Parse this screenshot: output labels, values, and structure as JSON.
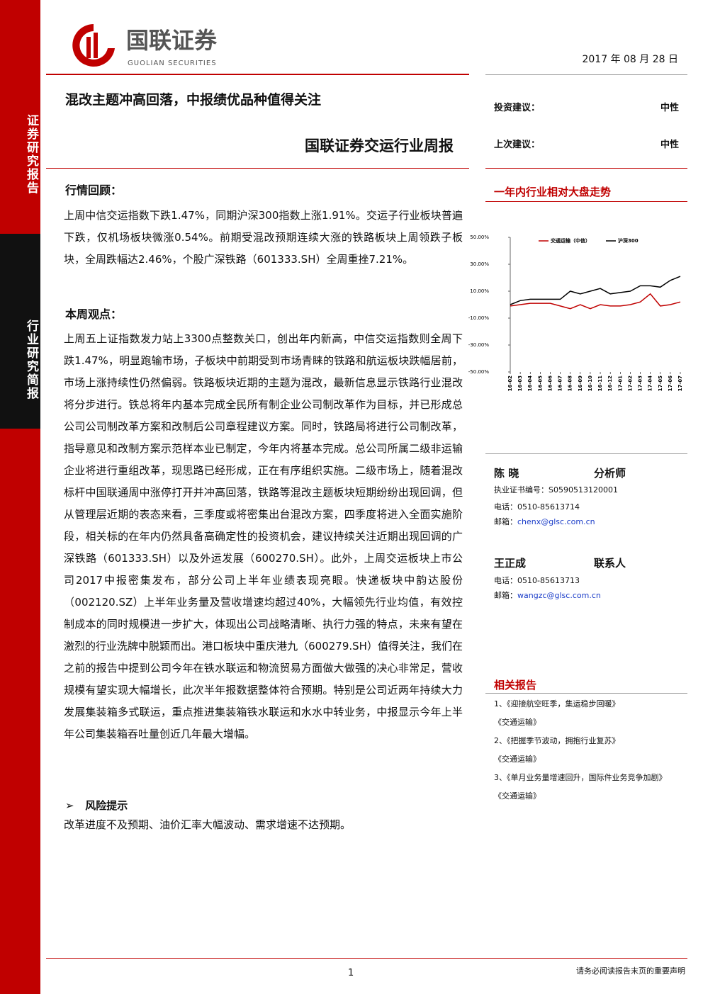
{
  "header": {
    "logo_cn": "国联证券",
    "logo_en": "GUOLIAN SECURITIES",
    "date": "2017 年 08 月 28 日"
  },
  "sidebar": {
    "top": "证券研究报告",
    "bottom": "行业研究简报"
  },
  "title": "混改主题冲高回落，中报绩优品种值得关注",
  "subtitle": "国联证券交运行业周报",
  "ratings": [
    {
      "label": "投资建议：",
      "value": "中性"
    },
    {
      "label": "上次建议：",
      "value": "中性"
    }
  ],
  "review": {
    "heading": "行情回顾：",
    "text": "上周中信交运指数下跌1.47%，同期沪深300指数上涨1.91%。交运子行业板块普遍下跌，仅机场板块微涨0.54%。前期受混改预期连续大涨的铁路板块上周领跌子板块，全周跌幅达2.46%，个股广深铁路（601333.SH）全周重挫7.21%。"
  },
  "view": {
    "heading": "本周观点：",
    "text": "上周五上证指数发力站上3300点整数关口，创出年内新高，中信交运指数则全周下跌1.47%，明显跑输市场，子板块中前期受到市场青睐的铁路和航运板块跌幅居前，市场上涨持续性仍然偏弱。铁路板块近期的主题为混改，最新信息显示铁路行业混改将分步进行。铁总将年内基本完成全民所有制企业公司制改革作为目标，并已形成总公司公司制改革方案和改制后公司章程建议方案。同时，铁路局将进行公司制改革，指导意见和改制方案示范样本业已制定，今年内将基本完成。总公司所属二级非运输企业将进行重组改革，现思路已经形成，正在有序组织实施。二级市场上，随着混改标杆中国联通周中涨停打开并冲高回落，铁路等混改主题板块短期纷纷出现回调，但从管理层近期的表态来看，三季度或将密集出台混改方案，四季度将进入全面实施阶段，相关标的在年内仍然具备高确定性的投资机会，建议持续关注近期出现回调的广深铁路（601333.SH）以及外运发展（600270.SH）。此外，上周交运板块上市公司2017中报密集发布，部分公司上半年业绩表现亮眼。快递板块中韵达股份（002120.SZ）上半年业务量及营收增速均超过40%，大幅领先行业均值，有效控制成本的同时规模进一步扩大，体现出公司战略清晰、执行力强的特点，未来有望在激烈的行业洗牌中脱颖而出。港口板块中重庆港九（600279.SH）值得关注，我们在之前的报告中提到公司今年在铁水联运和物流贸易方面做大做强的决心非常足，营收规模有望实现大幅增长，此次半年报数据整体符合预期。特别是公司近两年持续大力发展集装箱多式联运，重点推进集装箱铁水联运和水水中转业务，中报显示今年上半年公司集装箱吞吐量创近几年最大增幅。"
  },
  "risk": {
    "bullet": "➢",
    "heading": "风险提示",
    "text": "改革进度不及预期、油价汇率大幅波动、需求增速不达预期。"
  },
  "chart_data": {
    "type": "line",
    "title": "一年内行业相对大盘走势",
    "categories": [
      "16-02",
      "16-03",
      "16-04",
      "16-05",
      "16-06",
      "16-07",
      "16-08",
      "16-09",
      "16-10",
      "16-11",
      "16-12",
      "17-01",
      "17-02",
      "17-03",
      "17-04",
      "17-05",
      "17-06",
      "17-07"
    ],
    "series": [
      {
        "name": "交通运输（中信）",
        "color": "#c00000",
        "values": [
          -1,
          0,
          1,
          1,
          1,
          -1,
          -3,
          0,
          -3,
          0,
          -1,
          -1,
          0,
          2,
          8,
          -1,
          0,
          2
        ]
      },
      {
        "name": "沪深300",
        "color": "#000000",
        "values": [
          0,
          3,
          4,
          4,
          4,
          4,
          10,
          8,
          10,
          12,
          8,
          9,
          10,
          14,
          14,
          13,
          18,
          21
        ]
      }
    ],
    "ylim": [
      -50,
      50
    ],
    "yticks": [
      {
        "value": 50,
        "label": "50.00%"
      },
      {
        "value": 30,
        "label": "30.00%"
      },
      {
        "value": 10,
        "label": "10.00%"
      },
      {
        "value": -10,
        "label": "-10.00%"
      },
      {
        "value": -30,
        "label": "-30.00%"
      },
      {
        "value": -50,
        "label": "-50.00%"
      }
    ]
  },
  "analysts": [
    {
      "name": "陈 晓",
      "role": "分析师",
      "cert": "执业证书编号：S0590513120001",
      "phone": "电话：0510-85613714",
      "email_label": "邮箱：",
      "email": "chenx@glsc.com.cn"
    },
    {
      "name": "王正成",
      "role": "联系人",
      "phone": "电话：0510-85613713",
      "email_label": "邮箱：",
      "email": "wangzc@glsc.com.cn"
    }
  ],
  "related": {
    "heading": "相关报告",
    "items": [
      "1、《迎接航空旺季，集运稳步回暖》",
      "《交通运输》",
      "2、《把握季节波动，拥抱行业复苏》",
      "《交通运输》",
      "3、《单月业务量增速回升，国际件业务竞争加剧》",
      "《交通运输》"
    ]
  },
  "footer": {
    "page": "1",
    "disclaimer": "请务必阅读报告末页的重要声明"
  }
}
